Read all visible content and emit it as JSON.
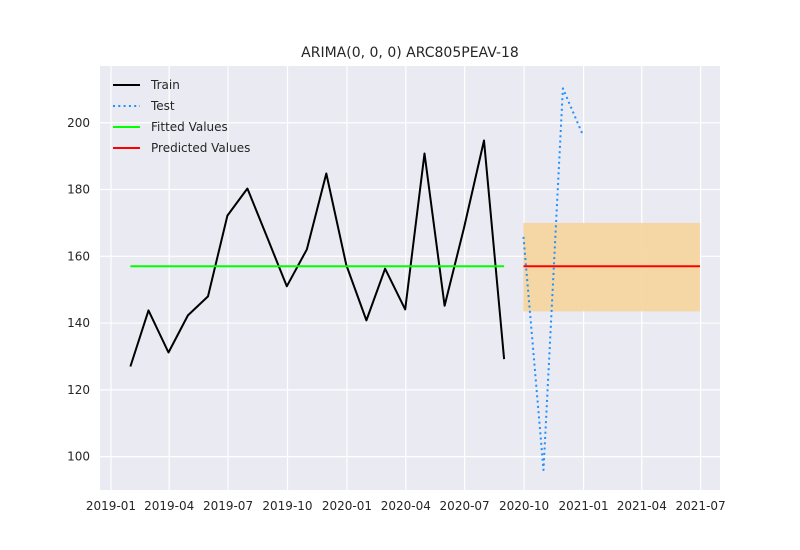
{
  "chart_data": {
    "type": "line",
    "title": "ARIMA(0, 0, 0) ARC805PEAV-18",
    "xlabel": "",
    "ylabel": "",
    "xlim": [
      "2018-12-15",
      "2021-07-31"
    ],
    "ylim": [
      90,
      217
    ],
    "x_tick_labels": [
      {
        "date": "2019-01-01",
        "label": "2019-01"
      },
      {
        "date": "2019-04-01",
        "label": "2019-04"
      },
      {
        "date": "2019-07-01",
        "label": "2019-07"
      },
      {
        "date": "2019-10-01",
        "label": "2019-10"
      },
      {
        "date": "2020-01-01",
        "label": "2020-01"
      },
      {
        "date": "2020-04-01",
        "label": "2020-04"
      },
      {
        "date": "2020-07-01",
        "label": "2020-07"
      },
      {
        "date": "2020-10-01",
        "label": "2020-10"
      },
      {
        "date": "2021-01-01",
        "label": "2021-01"
      },
      {
        "date": "2021-04-01",
        "label": "2021-04"
      },
      {
        "date": "2021-07-01",
        "label": "2021-07"
      }
    ],
    "y_ticks": [
      100,
      120,
      140,
      160,
      180,
      200
    ],
    "grid": true,
    "legend": "top-left",
    "series": [
      {
        "name": "Train",
        "color": "#000000",
        "style": "solid",
        "points": [
          {
            "x": "2019-01-31",
            "y": 127
          },
          {
            "x": "2019-02-28",
            "y": 143.8
          },
          {
            "x": "2019-03-31",
            "y": 131.2
          },
          {
            "x": "2019-04-30",
            "y": 142.3
          },
          {
            "x": "2019-05-31",
            "y": 148
          },
          {
            "x": "2019-06-30",
            "y": 172.2
          },
          {
            "x": "2019-07-31",
            "y": 180.3
          },
          {
            "x": "2019-08-31",
            "y": 165.5
          },
          {
            "x": "2019-09-30",
            "y": 151
          },
          {
            "x": "2019-10-31",
            "y": 162.1
          },
          {
            "x": "2019-11-30",
            "y": 184.8
          },
          {
            "x": "2019-12-31",
            "y": 157.4
          },
          {
            "x": "2020-01-31",
            "y": 140.8
          },
          {
            "x": "2020-02-29",
            "y": 156.3
          },
          {
            "x": "2020-03-31",
            "y": 144.1
          },
          {
            "x": "2020-04-30",
            "y": 190.8
          },
          {
            "x": "2020-05-31",
            "y": 145.2
          },
          {
            "x": "2020-06-30",
            "y": 168.5
          },
          {
            "x": "2020-07-31",
            "y": 194.7
          },
          {
            "x": "2020-08-31",
            "y": 129.2
          }
        ]
      },
      {
        "name": "Test",
        "color": "#1e90ff",
        "style": "dotted",
        "points": [
          {
            "x": "2020-09-30",
            "y": 165.8
          },
          {
            "x": "2020-10-31",
            "y": 96
          },
          {
            "x": "2020-11-30",
            "y": 210.3
          },
          {
            "x": "2020-12-31",
            "y": 196.3
          }
        ]
      },
      {
        "name": "Fitted Values",
        "color": "#00ff00",
        "style": "solid",
        "points": [
          {
            "x": "2019-01-31",
            "y": 157
          },
          {
            "x": "2020-08-31",
            "y": 157
          }
        ]
      },
      {
        "name": "Predicted Values",
        "color": "#ff0000",
        "style": "solid",
        "points": [
          {
            "x": "2020-09-30",
            "y": 157
          },
          {
            "x": "2021-06-30",
            "y": 157
          }
        ]
      }
    ],
    "confidence_band": {
      "color": "#f5d6a0",
      "x_start": "2020-09-30",
      "x_end": "2021-06-30",
      "lower": 143.5,
      "upper": 170
    }
  }
}
